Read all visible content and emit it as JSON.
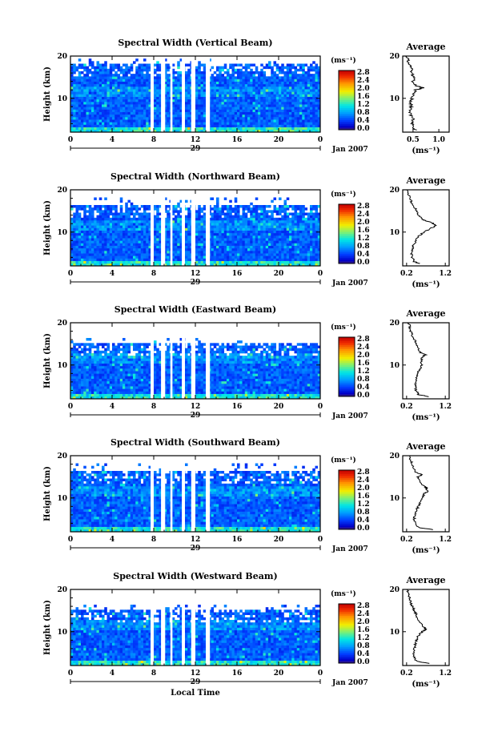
{
  "chart_data": [
    {
      "type": "heatmap",
      "title": "Spectral Width (Vertical Beam)",
      "ylabel": "Height (km)",
      "ylim": [
        2,
        20
      ],
      "xlim": [
        0,
        24
      ],
      "x_ticks": [
        "0",
        "4",
        "8",
        "12",
        "16",
        "20",
        "0"
      ],
      "y_ticks": [
        "20",
        "10"
      ],
      "date_label": "29",
      "month_label": "Jan 2007",
      "colorbar": {
        "unit": "(ms⁻¹)",
        "ticks": [
          "2.8",
          "2.4",
          "2.0",
          "1.6",
          "1.2",
          "0.8",
          "0.4",
          "0.0"
        ]
      },
      "data_gaps_hours": [
        [
          7.7,
          8.0
        ],
        [
          8.7,
          9.1
        ],
        [
          9.6,
          9.8
        ],
        [
          10.7,
          11.0
        ],
        [
          11.6,
          12.0
        ],
        [
          13.0,
          13.4
        ]
      ],
      "average": {
        "title": "Average",
        "xlabel": "(ms⁻¹)",
        "x_ticks": [
          "0.5",
          "1.0"
        ],
        "xlim": [
          0.3,
          1.2
        ],
        "y_ticks": [
          "20",
          "10"
        ],
        "profile": [
          [
            2.5,
            0.55
          ],
          [
            3,
            0.5
          ],
          [
            4,
            0.48
          ],
          [
            5,
            0.5
          ],
          [
            6,
            0.46
          ],
          [
            7,
            0.44
          ],
          [
            8,
            0.47
          ],
          [
            9,
            0.45
          ],
          [
            10,
            0.48
          ],
          [
            11,
            0.5
          ],
          [
            12,
            0.55
          ],
          [
            12.5,
            0.7
          ],
          [
            13,
            0.55
          ],
          [
            14,
            0.5
          ],
          [
            15,
            0.52
          ],
          [
            16,
            0.47
          ],
          [
            17,
            0.5
          ],
          [
            18,
            0.42
          ],
          [
            19,
            0.4
          ],
          [
            20,
            0.38
          ]
        ]
      }
    },
    {
      "type": "heatmap",
      "title": "Spectral Width (Northward Beam)",
      "ylabel": "Height (km)",
      "ylim": [
        2,
        20
      ],
      "xlim": [
        0,
        24
      ],
      "x_ticks": [
        "0",
        "4",
        "8",
        "12",
        "16",
        "20",
        "0"
      ],
      "y_ticks": [
        "20",
        "10"
      ],
      "date_label": "29",
      "month_label": "Jan 2007",
      "colorbar": {
        "unit": "(ms⁻¹)",
        "ticks": [
          "2.8",
          "2.4",
          "2.0",
          "1.6",
          "1.2",
          "0.8",
          "0.4",
          "0.0"
        ]
      },
      "data_gaps_hours": [
        [
          7.7,
          8.0
        ],
        [
          8.7,
          9.1
        ],
        [
          9.6,
          9.8
        ],
        [
          10.7,
          11.0
        ],
        [
          11.6,
          12.0
        ],
        [
          13.0,
          13.4
        ]
      ],
      "average": {
        "title": "Average",
        "xlabel": "(ms⁻¹)",
        "x_ticks": [
          "0.2",
          "1.2"
        ],
        "xlim": [
          0.1,
          1.3
        ],
        "y_ticks": [
          "20",
          "10"
        ],
        "profile": [
          [
            2.5,
            0.55
          ],
          [
            3,
            0.4
          ],
          [
            4,
            0.35
          ],
          [
            5,
            0.33
          ],
          [
            6,
            0.35
          ],
          [
            7,
            0.38
          ],
          [
            8,
            0.45
          ],
          [
            9,
            0.5
          ],
          [
            10,
            0.65
          ],
          [
            11,
            0.85
          ],
          [
            11.5,
            0.95
          ],
          [
            12,
            0.9
          ],
          [
            12.5,
            0.75
          ],
          [
            13,
            0.6
          ],
          [
            14,
            0.52
          ],
          [
            15,
            0.45
          ],
          [
            16,
            0.4
          ],
          [
            17,
            0.33
          ],
          [
            18,
            0.28
          ],
          [
            19,
            0.25
          ],
          [
            20,
            0.22
          ]
        ]
      }
    },
    {
      "type": "heatmap",
      "title": "Spectral Width (Eastward Beam)",
      "ylabel": "Height (km)",
      "ylim": [
        2,
        20
      ],
      "xlim": [
        0,
        24
      ],
      "x_ticks": [
        "0",
        "4",
        "8",
        "12",
        "16",
        "20",
        "0"
      ],
      "y_ticks": [
        "20",
        "10"
      ],
      "date_label": "29",
      "month_label": "Jan 2007",
      "colorbar": {
        "unit": "(ms⁻¹)",
        "ticks": [
          "2.8",
          "2.4",
          "2.0",
          "1.6",
          "1.2",
          "0.8",
          "0.4",
          "0.0"
        ]
      },
      "data_gaps_hours": [
        [
          7.7,
          8.0
        ],
        [
          8.7,
          9.1
        ],
        [
          9.6,
          9.8
        ],
        [
          10.7,
          11.0
        ],
        [
          11.6,
          12.0
        ],
        [
          13.0,
          13.4
        ]
      ],
      "average": {
        "title": "Average",
        "xlabel": "(ms⁻¹)",
        "x_ticks": [
          "0.2",
          "1.2"
        ],
        "xlim": [
          0.1,
          1.3
        ],
        "y_ticks": [
          "20",
          "10"
        ],
        "profile": [
          [
            2.5,
            0.8
          ],
          [
            3,
            0.5
          ],
          [
            4,
            0.45
          ],
          [
            5,
            0.42
          ],
          [
            6,
            0.44
          ],
          [
            7,
            0.46
          ],
          [
            8,
            0.48
          ],
          [
            9,
            0.55
          ],
          [
            10,
            0.6
          ],
          [
            11,
            0.58
          ],
          [
            12,
            0.62
          ],
          [
            12.5,
            0.7
          ],
          [
            13,
            0.55
          ],
          [
            14,
            0.5
          ],
          [
            15,
            0.45
          ],
          [
            16,
            0.4
          ],
          [
            17,
            0.35
          ],
          [
            18,
            0.3
          ],
          [
            19,
            0.28
          ],
          [
            20,
            0.25
          ]
        ]
      }
    },
    {
      "type": "heatmap",
      "title": "Spectral Width (Southward Beam)",
      "ylabel": "Height (km)",
      "ylim": [
        2,
        20
      ],
      "xlim": [
        0,
        24
      ],
      "x_ticks": [
        "0",
        "4",
        "8",
        "12",
        "16",
        "20",
        "0"
      ],
      "y_ticks": [
        "20",
        "10"
      ],
      "date_label": "29",
      "month_label": "Jan 2007",
      "colorbar": {
        "unit": "(ms⁻¹)",
        "ticks": [
          "2.8",
          "2.4",
          "2.0",
          "1.6",
          "1.2",
          "0.8",
          "0.4",
          "0.0"
        ]
      },
      "data_gaps_hours": [
        [
          7.7,
          8.0
        ],
        [
          8.7,
          9.1
        ],
        [
          9.6,
          9.8
        ],
        [
          10.7,
          11.0
        ],
        [
          11.6,
          12.0
        ],
        [
          13.0,
          13.4
        ]
      ],
      "average": {
        "title": "Average",
        "xlabel": "(ms⁻¹)",
        "x_ticks": [
          "0.2",
          "1.2"
        ],
        "xlim": [
          0.1,
          1.3
        ],
        "y_ticks": [
          "20",
          "10"
        ],
        "profile": [
          [
            2.5,
            0.9
          ],
          [
            3,
            0.5
          ],
          [
            4,
            0.42
          ],
          [
            5,
            0.4
          ],
          [
            6,
            0.42
          ],
          [
            7,
            0.45
          ],
          [
            8,
            0.5
          ],
          [
            9,
            0.55
          ],
          [
            10,
            0.6
          ],
          [
            11,
            0.65
          ],
          [
            11.5,
            0.75
          ],
          [
            12,
            0.7
          ],
          [
            12.5,
            0.72
          ],
          [
            13,
            0.6
          ],
          [
            14,
            0.55
          ],
          [
            15,
            0.5
          ],
          [
            15.5,
            0.6
          ],
          [
            16,
            0.45
          ],
          [
            17,
            0.4
          ],
          [
            18,
            0.35
          ],
          [
            19,
            0.3
          ],
          [
            20,
            0.28
          ]
        ]
      }
    },
    {
      "type": "heatmap",
      "title": "Spectral Width (Westward Beam)",
      "ylabel": "Height (km)",
      "ylim": [
        2,
        20
      ],
      "xlim": [
        0,
        24
      ],
      "x_ticks": [
        "0",
        "4",
        "8",
        "12",
        "16",
        "20",
        "0"
      ],
      "y_ticks": [
        "20",
        "10"
      ],
      "date_label": "29",
      "month_label": "Jan 2007",
      "xlabel": "Local Time",
      "colorbar": {
        "unit": "(ms⁻¹)",
        "ticks": [
          "2.8",
          "2.4",
          "2.0",
          "1.6",
          "1.2",
          "0.8",
          "0.4",
          "0.0"
        ]
      },
      "data_gaps_hours": [
        [
          7.7,
          8.0
        ],
        [
          8.7,
          9.1
        ],
        [
          9.6,
          9.8
        ],
        [
          10.7,
          11.0
        ],
        [
          11.6,
          12.0
        ],
        [
          13.0,
          13.4
        ]
      ],
      "average": {
        "title": "Average",
        "xlabel": "(ms⁻¹)",
        "x_ticks": [
          "0.2",
          "1.2"
        ],
        "xlim": [
          0.1,
          1.3
        ],
        "y_ticks": [
          "20",
          "10"
        ],
        "profile": [
          [
            2.5,
            0.8
          ],
          [
            3,
            0.45
          ],
          [
            4,
            0.4
          ],
          [
            5,
            0.38
          ],
          [
            6,
            0.4
          ],
          [
            7,
            0.42
          ],
          [
            8,
            0.45
          ],
          [
            9,
            0.5
          ],
          [
            10,
            0.6
          ],
          [
            10.5,
            0.7
          ],
          [
            11,
            0.65
          ],
          [
            12,
            0.55
          ],
          [
            13,
            0.5
          ],
          [
            14,
            0.45
          ],
          [
            15,
            0.4
          ],
          [
            16,
            0.35
          ],
          [
            17,
            0.3
          ],
          [
            18,
            0.27
          ],
          [
            19,
            0.24
          ],
          [
            20,
            0.22
          ]
        ]
      }
    }
  ]
}
